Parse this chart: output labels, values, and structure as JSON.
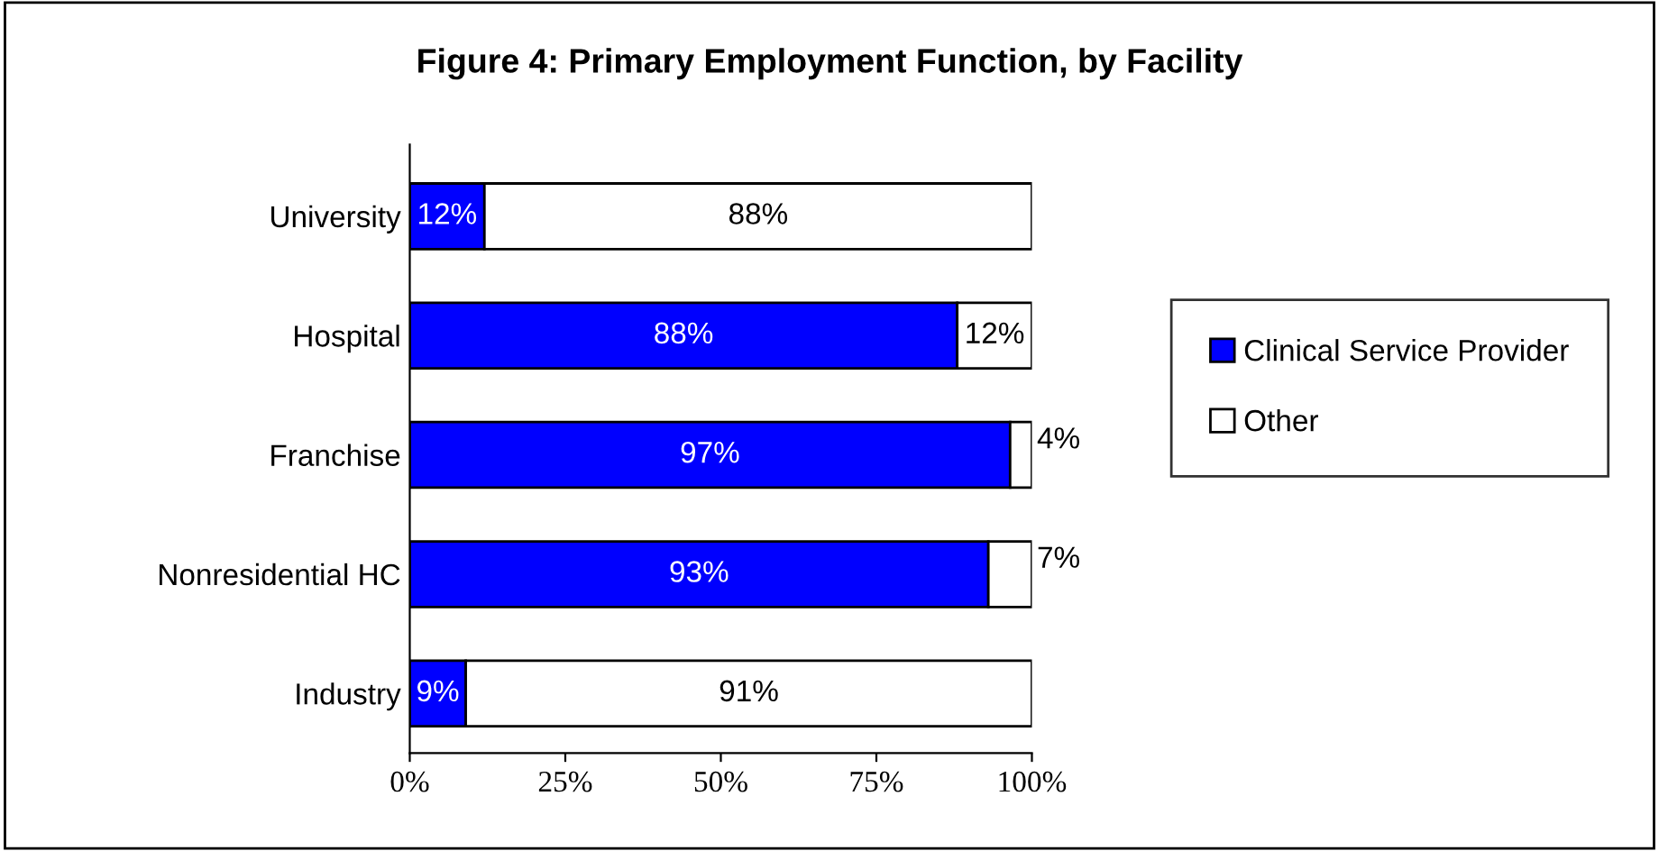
{
  "chart_data": {
    "type": "bar",
    "orientation": "horizontal",
    "stacked": true,
    "title": "Figure 4: Primary Employment Function, by Facility",
    "categories": [
      "University",
      "Hospital",
      "Franchise",
      "Nonresidential HC",
      "Industry"
    ],
    "series": [
      {
        "name": "Clinical Service Provider",
        "color": "#0000ff",
        "values": [
          12,
          88,
          96.5,
          93,
          9
        ],
        "value_labels": [
          "12%",
          "88%",
          "97%",
          "93%",
          "9%"
        ]
      },
      {
        "name": "Other",
        "color": "#ffffff",
        "values": [
          88,
          12,
          3.5,
          7,
          91
        ],
        "value_labels": [
          "88%",
          "12%",
          "4%",
          "7%",
          "91%"
        ]
      }
    ],
    "xlim": [
      0,
      100
    ],
    "xticks": [
      {
        "value": 0,
        "label": "0%"
      },
      {
        "value": 25,
        "label": "25%"
      },
      {
        "value": 50,
        "label": "50%"
      },
      {
        "value": 75,
        "label": "75%"
      },
      {
        "value": 100,
        "label": "100%"
      }
    ],
    "grid": false,
    "legend": "right"
  }
}
